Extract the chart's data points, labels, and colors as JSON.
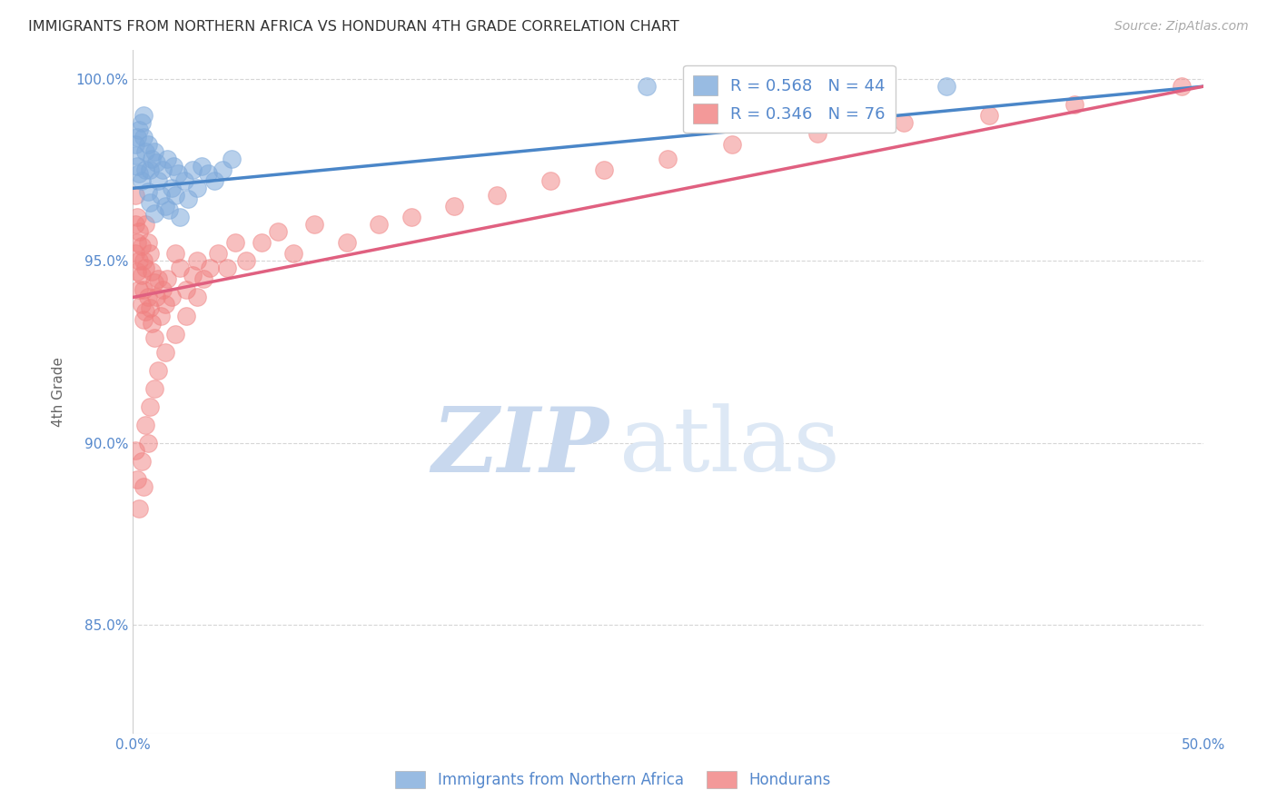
{
  "title": "IMMIGRANTS FROM NORTHERN AFRICA VS HONDURAN 4TH GRADE CORRELATION CHART",
  "source": "Source: ZipAtlas.com",
  "ylabel": "4th Grade",
  "xlim": [
    0.0,
    0.5
  ],
  "ylim": [
    0.82,
    1.008
  ],
  "yticks": [
    0.85,
    0.9,
    0.95,
    1.0
  ],
  "ytick_labels": [
    "85.0%",
    "90.0%",
    "95.0%",
    "100.0%"
  ],
  "xticks": [
    0.0,
    0.1,
    0.2,
    0.3,
    0.4,
    0.5
  ],
  "xtick_labels": [
    "0.0%",
    "",
    "",
    "",
    "",
    "50.0%"
  ],
  "legend_blue_r": "R = 0.568",
  "legend_blue_n": "N = 44",
  "legend_pink_r": "R = 0.346",
  "legend_pink_n": "N = 76",
  "blue_color": "#7faadb",
  "pink_color": "#f08080",
  "blue_line_color": "#4a86c8",
  "pink_line_color": "#e06080",
  "background_color": "#ffffff",
  "grid_color": "#cccccc",
  "title_color": "#333333",
  "label_color": "#5588cc",
  "watermark_zip": "ZIP",
  "watermark_atlas": "atlas",
  "blue_x": [
    0.001,
    0.001,
    0.002,
    0.002,
    0.003,
    0.003,
    0.004,
    0.004,
    0.005,
    0.005,
    0.006,
    0.006,
    0.007,
    0.007,
    0.008,
    0.008,
    0.009,
    0.01,
    0.01,
    0.011,
    0.012,
    0.013,
    0.014,
    0.015,
    0.016,
    0.017,
    0.018,
    0.019,
    0.02,
    0.021,
    0.022,
    0.024,
    0.026,
    0.028,
    0.03,
    0.032,
    0.035,
    0.038,
    0.042,
    0.046,
    0.24,
    0.28,
    0.35,
    0.38
  ],
  "blue_y": [
    0.982,
    0.979,
    0.984,
    0.976,
    0.986,
    0.974,
    0.988,
    0.972,
    0.99,
    0.984,
    0.98,
    0.975,
    0.982,
    0.969,
    0.975,
    0.966,
    0.978,
    0.98,
    0.963,
    0.977,
    0.972,
    0.968,
    0.975,
    0.965,
    0.978,
    0.964,
    0.97,
    0.976,
    0.968,
    0.974,
    0.962,
    0.972,
    0.967,
    0.975,
    0.97,
    0.976,
    0.974,
    0.972,
    0.975,
    0.978,
    0.998,
    0.998,
    0.998,
    0.998
  ],
  "pink_x": [
    0.001,
    0.001,
    0.001,
    0.002,
    0.002,
    0.002,
    0.003,
    0.003,
    0.003,
    0.004,
    0.004,
    0.004,
    0.005,
    0.005,
    0.005,
    0.006,
    0.006,
    0.006,
    0.007,
    0.007,
    0.008,
    0.008,
    0.009,
    0.009,
    0.01,
    0.01,
    0.011,
    0.012,
    0.013,
    0.014,
    0.015,
    0.016,
    0.018,
    0.02,
    0.022,
    0.025,
    0.028,
    0.03,
    0.033,
    0.036,
    0.04,
    0.044,
    0.048,
    0.053,
    0.06,
    0.068,
    0.075,
    0.085,
    0.1,
    0.115,
    0.13,
    0.15,
    0.17,
    0.195,
    0.22,
    0.25,
    0.28,
    0.32,
    0.36,
    0.4,
    0.44,
    0.49,
    0.001,
    0.002,
    0.003,
    0.004,
    0.005,
    0.006,
    0.007,
    0.008,
    0.01,
    0.012,
    0.015,
    0.02,
    0.025,
    0.03
  ],
  "pink_y": [
    0.968,
    0.96,
    0.952,
    0.962,
    0.955,
    0.947,
    0.958,
    0.95,
    0.942,
    0.954,
    0.946,
    0.938,
    0.95,
    0.942,
    0.934,
    0.96,
    0.948,
    0.936,
    0.955,
    0.94,
    0.952,
    0.937,
    0.947,
    0.933,
    0.944,
    0.929,
    0.94,
    0.945,
    0.935,
    0.942,
    0.938,
    0.945,
    0.94,
    0.952,
    0.948,
    0.942,
    0.946,
    0.95,
    0.945,
    0.948,
    0.952,
    0.948,
    0.955,
    0.95,
    0.955,
    0.958,
    0.952,
    0.96,
    0.955,
    0.96,
    0.962,
    0.965,
    0.968,
    0.972,
    0.975,
    0.978,
    0.982,
    0.985,
    0.988,
    0.99,
    0.993,
    0.998,
    0.898,
    0.89,
    0.882,
    0.895,
    0.888,
    0.905,
    0.9,
    0.91,
    0.915,
    0.92,
    0.925,
    0.93,
    0.935,
    0.94
  ]
}
